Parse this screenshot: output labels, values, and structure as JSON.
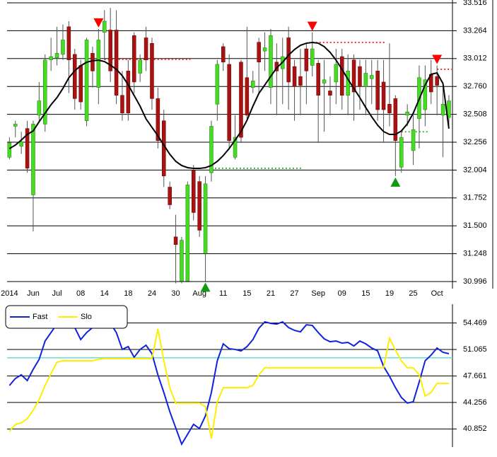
{
  "chart_data": [
    {
      "type": "candlestick",
      "categories": [
        "2014",
        null,
        null,
        null,
        "Jun",
        null,
        null,
        null,
        "Jul",
        null,
        null,
        null,
        "08",
        null,
        null,
        null,
        "14",
        null,
        null,
        null,
        "18",
        null,
        null,
        null,
        "24",
        null,
        null,
        null,
        "30",
        null,
        null,
        null,
        "Aug",
        null,
        null,
        null,
        "11",
        null,
        null,
        null,
        "15",
        null,
        null,
        null,
        "21",
        null,
        null,
        null,
        "27",
        null,
        null,
        null,
        "Sep",
        null,
        null,
        null,
        "09",
        null,
        null,
        null,
        "15",
        null,
        null,
        null,
        "19",
        null,
        null,
        null,
        "25",
        null,
        null,
        null,
        "Oct",
        null,
        null
      ],
      "open": [
        32.12,
        32.4,
        32.22,
        32.38,
        31.78,
        32.5,
        32.42,
        33.0,
        33.02,
        33.05,
        33.3,
        33.05,
        32.95,
        32.45,
        33.06,
        32.75,
        33.25,
        33.27,
        33.27,
        32.68,
        32.9,
        33.22,
        32.88,
        33.2,
        33.15,
        32.65,
        32.45,
        31.85,
        31.4,
        31.0,
        31.0,
        32.0,
        31.9,
        31.25,
        31.98,
        32.6,
        33.12,
        32.96,
        32.12,
        32.98,
        32.84,
        32.75,
        33.16,
        33.08,
        32.75,
        32.98,
        32.92,
        33.2,
        32.94,
        32.85,
        33.1,
        32.95,
        32.97,
        32.79,
        32.72,
        32.8,
        33.03,
        32.68,
        33.0,
        32.94,
        32.76,
        32.83,
        32.9,
        32.8,
        32.6,
        32.65,
        32.03,
        32.5,
        32.18,
        32.47,
        32.55,
        32.87,
        32.85,
        32.5,
        32.48
      ],
      "high": [
        32.3,
        32.45,
        32.35,
        32.45,
        32.45,
        32.8,
        33.05,
        33.2,
        33.3,
        33.32,
        33.35,
        33.1,
        33.0,
        33.2,
        33.12,
        33.28,
        33.45,
        33.47,
        33.45,
        32.9,
        33.0,
        33.25,
        33.05,
        33.3,
        33.2,
        32.75,
        32.55,
        31.9,
        31.6,
        31.4,
        31.9,
        32.05,
        31.95,
        31.95,
        32.45,
        33.0,
        33.15,
        33.05,
        32.5,
        33.0,
        33.3,
        32.9,
        33.2,
        33.25,
        33.28,
        33.15,
        33.2,
        33.3,
        33.0,
        33.1,
        33.15,
        33.25,
        33.0,
        33.0,
        32.85,
        33.1,
        33.1,
        33.05,
        33.05,
        33.0,
        33.0,
        33.0,
        33.0,
        33.0,
        33.15,
        32.68,
        32.35,
        32.6,
        32.5,
        32.95,
        32.95,
        33.0,
        32.95,
        32.75,
        32.68
      ],
      "low": [
        32.1,
        32.3,
        32.15,
        31.98,
        31.45,
        32.45,
        32.35,
        32.9,
        32.95,
        33.0,
        32.7,
        32.55,
        32.55,
        32.4,
        32.75,
        32.6,
        33.0,
        32.8,
        32.6,
        32.45,
        32.45,
        32.7,
        32.8,
        32.9,
        32.55,
        32.2,
        31.85,
        31.65,
        30.98,
        30.98,
        31.0,
        31.55,
        31.4,
        31.0,
        31.9,
        32.45,
        32.9,
        32.2,
        32.1,
        32.25,
        32.45,
        32.7,
        32.7,
        32.9,
        32.6,
        32.5,
        32.6,
        32.55,
        32.45,
        32.5,
        32.6,
        32.85,
        32.25,
        32.35,
        32.5,
        32.6,
        32.55,
        32.5,
        32.45,
        32.55,
        32.5,
        32.6,
        32.45,
        32.25,
        32.4,
        31.95,
        31.98,
        32.4,
        32.05,
        32.2,
        32.4,
        32.6,
        32.5,
        32.12,
        32.4
      ],
      "close": [
        32.25,
        32.42,
        32.26,
        32.02,
        32.42,
        32.63,
        33.0,
        33.03,
        33.06,
        33.18,
        33.0,
        32.65,
        32.62,
        33.18,
        32.9,
        33.18,
        33.35,
        32.9,
        32.68,
        32.52,
        32.52,
        32.8,
        33.0,
        33.0,
        32.65,
        32.27,
        31.95,
        31.69,
        31.33,
        31.37,
        31.87,
        31.62,
        31.46,
        31.88,
        32.4,
        32.96,
        32.98,
        32.27,
        32.3,
        32.3,
        32.5,
        32.81,
        32.98,
        33.11,
        33.22,
        32.9,
        33.03,
        32.8,
        32.76,
        32.77,
        32.9,
        33.1,
        32.68,
        32.82,
        32.68,
        32.96,
        32.68,
        32.9,
        32.71,
        32.76,
        32.88,
        32.86,
        32.55,
        32.55,
        32.52,
        32.27,
        32.3,
        32.53,
        32.37,
        32.84,
        32.82,
        32.71,
        32.77,
        32.6,
        32.63
      ],
      "up_color": "#44dd22",
      "down_color": "#aa1111",
      "moving_average": {
        "color": "#000000",
        "values": [
          32.198,
          32.23,
          32.275,
          32.326,
          32.358,
          32.441,
          32.518,
          32.595,
          32.659,
          32.742,
          32.838,
          32.902,
          32.947,
          32.979,
          32.992,
          32.998,
          32.985,
          32.953,
          32.915,
          32.857,
          32.774,
          32.678,
          32.582,
          32.467,
          32.39,
          32.314,
          32.23,
          32.147,
          32.083,
          32.045,
          32.026,
          32.019,
          32.019,
          32.026,
          32.045,
          32.083,
          32.135,
          32.198,
          32.275,
          32.352,
          32.454,
          32.582,
          32.697,
          32.774,
          32.851,
          32.928,
          32.979,
          33.043,
          33.094,
          33.132,
          33.151,
          33.158,
          33.151,
          33.12,
          33.068,
          32.998,
          32.915,
          32.825,
          32.742,
          32.659,
          32.569,
          32.486,
          32.41,
          32.352,
          32.326,
          32.326,
          32.358,
          32.422,
          32.518,
          32.646,
          32.774,
          32.87,
          32.883,
          32.787,
          32.378
        ]
      },
      "signals": [
        {
          "index": 15,
          "direction": "down",
          "color": "#ff0000"
        },
        {
          "index": 51,
          "direction": "down",
          "color": "#ff0000"
        },
        {
          "index": 72,
          "direction": "down",
          "color": "#ff0000"
        },
        {
          "index": 33,
          "direction": "up",
          "color": "#119911"
        },
        {
          "index": 65,
          "direction": "up",
          "color": "#119911"
        }
      ],
      "levels": [
        {
          "from": 16,
          "to": 30,
          "value": 33.004,
          "color": "#ff3333"
        },
        {
          "from": 51,
          "to": 63,
          "value": 33.158,
          "color": "#ff3333"
        },
        {
          "from": 72,
          "to": 74,
          "value": 32.915,
          "color": "#ff3333"
        },
        {
          "from": 34,
          "to": 49,
          "value": 32.02,
          "color": "#33bb33"
        },
        {
          "from": 66,
          "to": 70,
          "value": 32.35,
          "color": "#33bb33"
        }
      ],
      "ylim": [
        30.996,
        33.516
      ],
      "yticks": [
        30.996,
        31.248,
        {
          "value": 31.5,
          "label": "31.500"
        },
        31.752,
        32.004,
        32.256,
        32.508,
        {
          "value": 32.76,
          "label": "32.760"
        },
        33.012,
        33.264,
        33.516
      ],
      "grid": true
    },
    {
      "type": "line",
      "series": [
        {
          "name": "Fast",
          "color": "#1122dd",
          "values": [
            46.44,
            47.34,
            47.8,
            47.07,
            48.52,
            49.79,
            52.15,
            53.24,
            54.33,
            55.24,
            55.06,
            53.88,
            52.34,
            53.24,
            53.88,
            54.61,
            55.33,
            54.42,
            53.24,
            51.07,
            51.43,
            50.07,
            51.07,
            51.61,
            50.52,
            47.8,
            45.53,
            43.08,
            40.99,
            38.9,
            40.17,
            41.44,
            40.9,
            42.53,
            45.53,
            49.61,
            51.79,
            51.16,
            51.07,
            50.88,
            51.43,
            52.34,
            53.79,
            54.61,
            54.42,
            54.33,
            54.61,
            53.88,
            53.52,
            53.33,
            54.24,
            54.15,
            53.24,
            52.43,
            52.06,
            52.15,
            51.88,
            51.97,
            51.52,
            52.15,
            51.79,
            51.25,
            50.88,
            48.89,
            47.62,
            46.16,
            44.89,
            44.17,
            44.35,
            46.89,
            49.61,
            50.34,
            51.25,
            50.7,
            50.52
          ]
        },
        {
          "name": "Slo",
          "color": "#ffee00",
          "values": [
            40.54,
            41.44,
            41.63,
            42.17,
            43.26,
            44.62,
            46.44,
            47.98,
            49.43,
            49.61,
            49.61,
            49.61,
            49.61,
            49.61,
            49.61,
            49.79,
            49.89,
            49.89,
            49.89,
            49.89,
            49.89,
            49.89,
            49.89,
            49.89,
            49.89,
            53.7,
            49.61,
            46.16,
            44.17,
            44.17,
            44.17,
            44.17,
            44.17,
            43.71,
            39.63,
            44.35,
            46.16,
            46.16,
            46.16,
            46.16,
            46.16,
            46.44,
            47.8,
            48.71,
            48.71,
            48.71,
            48.71,
            48.71,
            48.71,
            48.71,
            48.71,
            48.71,
            48.71,
            48.71,
            48.71,
            48.71,
            48.71,
            48.71,
            48.71,
            48.71,
            48.71,
            48.71,
            48.71,
            48.71,
            52.52,
            50.97,
            49.61,
            48.71,
            48.71,
            47.8,
            45.07,
            45.53,
            46.71,
            46.71,
            46.71
          ]
        }
      ],
      "reference_line": {
        "value": 50,
        "color": "#66dddd"
      },
      "ylim": [
        38.7,
        56.7
      ],
      "yticks": [
        40.852,
        44.256,
        47.661,
        51.065,
        54.469
      ],
      "grid": true
    }
  ]
}
